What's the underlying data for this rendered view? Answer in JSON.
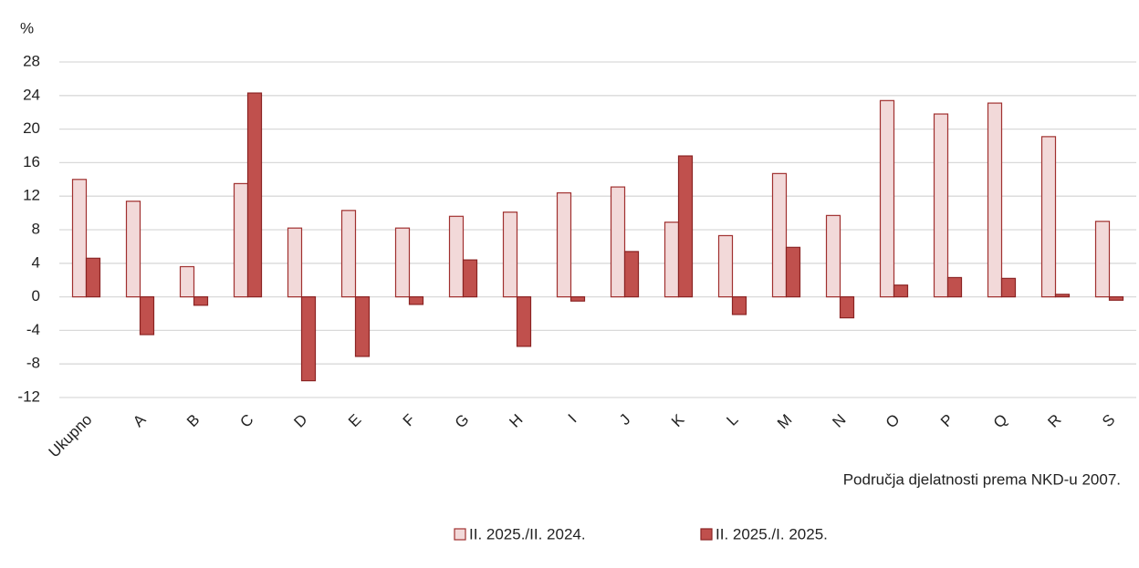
{
  "chart_data": {
    "type": "bar",
    "y_unit": "%",
    "x_label": "Područja djelatnosti prema NKD-u 2007.",
    "categories": [
      "Ukupno",
      "A",
      "B",
      "C",
      "D",
      "E",
      "F",
      "G",
      "H",
      "I",
      "J",
      "K",
      "L",
      "M",
      "N",
      "O",
      "P",
      "Q",
      "R",
      "S"
    ],
    "series": [
      {
        "name": "II. 2025./II. 2024.",
        "color": "#f2d9d9",
        "stroke": "#a0302f",
        "values": [
          14.0,
          11.4,
          3.6,
          13.5,
          8.2,
          10.3,
          8.2,
          9.6,
          10.1,
          12.4,
          13.1,
          8.9,
          7.3,
          14.7,
          9.7,
          23.4,
          21.8,
          23.1,
          19.1,
          9.0
        ]
      },
      {
        "name": "II. 2025./I. 2025.",
        "color": "#c0504d",
        "stroke": "#8b2323",
        "values": [
          4.6,
          -4.5,
          -1.0,
          24.3,
          -10.0,
          -7.1,
          -0.9,
          4.4,
          -5.9,
          -0.5,
          5.4,
          16.8,
          -2.1,
          5.9,
          -2.5,
          1.4,
          2.3,
          2.2,
          0.3,
          -0.4
        ]
      }
    ],
    "ylim": [
      -12,
      28
    ],
    "yticks": [
      -12,
      -8,
      -4,
      0,
      4,
      8,
      12,
      16,
      20,
      24,
      28
    ],
    "grid": true
  }
}
